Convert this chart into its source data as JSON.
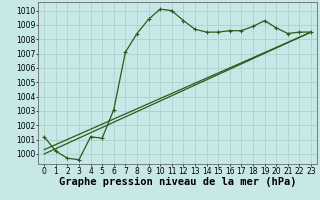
{
  "bg_color": "#c8e8e8",
  "grid_color": "#b0d0d0",
  "line_color": "#2d5a1b",
  "x_ticks": [
    0,
    1,
    2,
    3,
    4,
    5,
    6,
    7,
    8,
    9,
    10,
    11,
    12,
    13,
    14,
    15,
    16,
    17,
    18,
    19,
    20,
    21,
    22,
    23
  ],
  "ylim_min": 999.3,
  "ylim_max": 1010.6,
  "y_ticks": [
    1000,
    1001,
    1002,
    1003,
    1004,
    1005,
    1006,
    1007,
    1008,
    1009,
    1010
  ],
  "series1_x": [
    0,
    1,
    2,
    3,
    4,
    5,
    6,
    7,
    8,
    9,
    10,
    11,
    12,
    13,
    14,
    15,
    16,
    17,
    18,
    19,
    20,
    21,
    22,
    23
  ],
  "series1_y": [
    1001.2,
    1000.2,
    999.7,
    999.6,
    1001.2,
    1001.1,
    1003.1,
    1007.1,
    1008.4,
    1009.4,
    1010.1,
    1010.0,
    1009.3,
    1008.7,
    1008.5,
    1008.5,
    1008.6,
    1008.6,
    1008.9,
    1009.3,
    1008.8,
    1008.4,
    1008.5,
    1008.5
  ],
  "series2_x": [
    0,
    23
  ],
  "series2_y": [
    1000.3,
    1008.5
  ],
  "series3_x": [
    0,
    23
  ],
  "series3_y": [
    1000.0,
    1008.5
  ],
  "xlabel": "Graphe pression niveau de la mer (hPa)",
  "xlabel_fontsize": 7.5,
  "tick_fontsize": 5.5
}
